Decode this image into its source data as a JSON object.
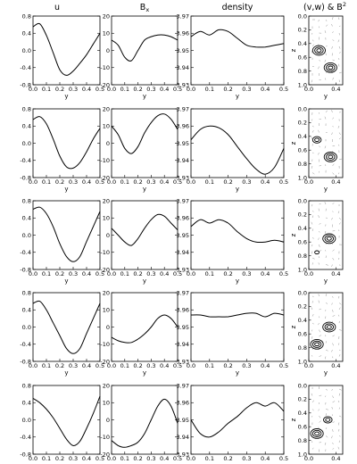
{
  "columns": [
    {
      "title": "u"
    },
    {
      "title": "B",
      "subscript": "x"
    },
    {
      "title": "density"
    },
    {
      "title": "(v,w) & B",
      "superscript": "2"
    }
  ],
  "axis_labels": {
    "y": "y",
    "z": "z"
  },
  "chart_data": {
    "type": "line",
    "layout": "5 rows x 4 columns of panels",
    "x": [
      0.0,
      0.05,
      0.1,
      0.15,
      0.2,
      0.25,
      0.3,
      0.35,
      0.4,
      0.45,
      0.5
    ],
    "x_ticks": [
      "0.0",
      "0.1",
      "0.2",
      "0.3",
      "0.4",
      "0.5"
    ],
    "panels": {
      "u": {
        "ylim": [
          -0.8,
          0.8
        ],
        "yticks": [
          "0.8",
          "0.4",
          "0.0",
          "-0.4",
          "-0.8"
        ],
        "tick_values": [
          0.8,
          0.4,
          0.0,
          -0.4,
          -0.8
        ],
        "rows": [
          [
            0.55,
            0.62,
            0.35,
            -0.05,
            -0.45,
            -0.58,
            -0.48,
            -0.3,
            -0.1,
            0.15,
            0.4
          ],
          [
            0.55,
            0.62,
            0.45,
            0.1,
            -0.3,
            -0.55,
            -0.58,
            -0.45,
            -0.2,
            0.1,
            0.35
          ],
          [
            0.6,
            0.65,
            0.5,
            0.2,
            -0.2,
            -0.5,
            -0.62,
            -0.5,
            -0.15,
            0.2,
            0.55
          ],
          [
            0.55,
            0.6,
            0.4,
            0.1,
            -0.2,
            -0.5,
            -0.62,
            -0.5,
            -0.15,
            0.2,
            0.55
          ],
          [
            0.5,
            0.4,
            0.25,
            0.05,
            -0.2,
            -0.45,
            -0.6,
            -0.5,
            -0.2,
            0.15,
            0.55
          ]
        ]
      },
      "Bx": {
        "ylim": [
          -20,
          20
        ],
        "yticks": [
          "20",
          "10",
          "0",
          "-10",
          "-20"
        ],
        "tick_values": [
          20,
          10,
          0,
          -10,
          -20
        ],
        "rows": [
          [
            6,
            3,
            -4,
            -6,
            0,
            6,
            8,
            9,
            9,
            8,
            6
          ],
          [
            10,
            5,
            -3,
            -6,
            -2,
            6,
            12,
            16,
            17,
            14,
            8
          ],
          [
            4,
            0,
            -4,
            -6,
            -2,
            4,
            9,
            12,
            11,
            7,
            3
          ],
          [
            -6,
            -8,
            -9,
            -9,
            -7,
            -4,
            0,
            5,
            7,
            5,
            0
          ],
          [
            -12,
            -15,
            -16,
            -15,
            -13,
            -8,
            0,
            8,
            12,
            8,
            -2
          ]
        ]
      },
      "density": {
        "ylim": [
          3.93,
          3.97
        ],
        "yticks": [
          "3.97",
          "3.96",
          "3.95",
          "3.94",
          "3.93"
        ],
        "tick_values": [
          3.97,
          3.96,
          3.95,
          3.94,
          3.93
        ],
        "rows": [
          [
            3.958,
            3.961,
            3.959,
            3.962,
            3.961,
            3.957,
            3.953,
            3.952,
            3.952,
            3.953,
            3.954
          ],
          [
            3.952,
            3.958,
            3.96,
            3.959,
            3.955,
            3.948,
            3.941,
            3.935,
            3.932,
            3.936,
            3.947
          ],
          [
            3.955,
            3.959,
            3.957,
            3.959,
            3.957,
            3.952,
            3.948,
            3.946,
            3.946,
            3.947,
            3.946
          ],
          [
            3.957,
            3.957,
            3.956,
            3.956,
            3.956,
            3.957,
            3.958,
            3.958,
            3.956,
            3.958,
            3.957
          ],
          [
            3.95,
            3.942,
            3.94,
            3.943,
            3.948,
            3.952,
            3.957,
            3.96,
            3.958,
            3.96,
            3.955
          ]
        ]
      },
      "flow": {
        "xticks": [
          "0.0",
          "0.4"
        ],
        "zticks": [
          "0.0",
          "0.2",
          "0.4",
          "0.6",
          "0.8",
          "1.0"
        ],
        "xlim": [
          0.0,
          0.5
        ],
        "zlim": [
          0.0,
          1.0
        ],
        "rows": [
          {
            "contours": [
              {
                "y": 0.15,
                "z": 0.5,
                "n": 3
              },
              {
                "y": 0.32,
                "z": 0.75,
                "n": 3
              }
            ]
          },
          {
            "contours": [
              {
                "y": 0.12,
                "z": 0.45,
                "n": 2
              },
              {
                "y": 0.32,
                "z": 0.7,
                "n": 3
              }
            ]
          },
          {
            "contours": [
              {
                "y": 0.3,
                "z": 0.55,
                "n": 3
              },
              {
                "y": 0.12,
                "z": 0.75,
                "n": 1
              }
            ]
          },
          {
            "contours": [
              {
                "y": 0.3,
                "z": 0.5,
                "n": 3
              },
              {
                "y": 0.12,
                "z": 0.75,
                "n": 3
              }
            ]
          },
          {
            "contours": [
              {
                "y": 0.28,
                "z": 0.5,
                "n": 2
              },
              {
                "y": 0.12,
                "z": 0.7,
                "n": 3
              }
            ]
          }
        ]
      }
    }
  }
}
